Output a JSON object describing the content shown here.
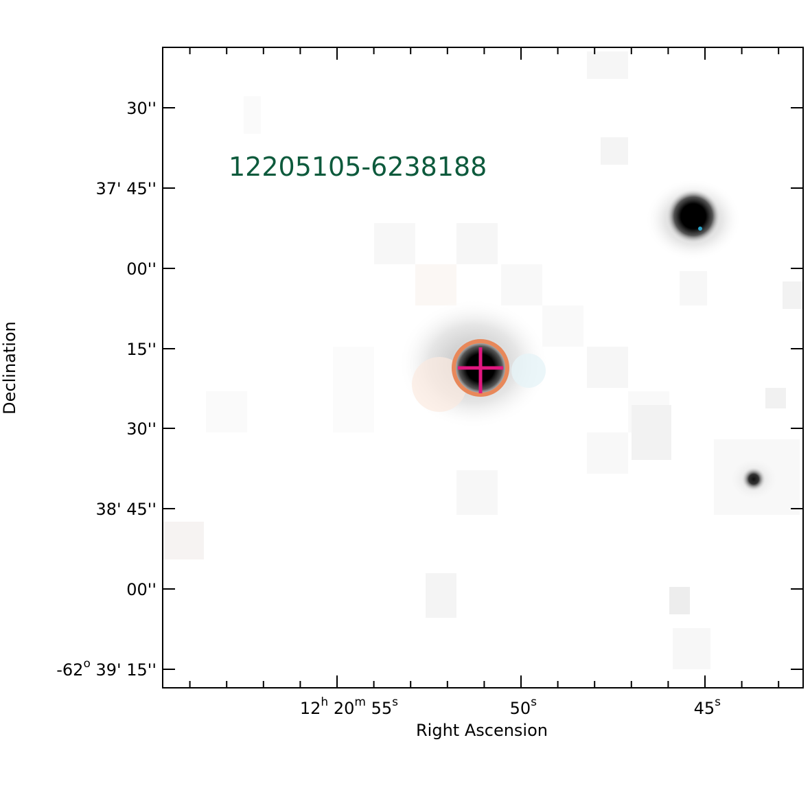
{
  "object_label": "12205105-6238188",
  "label_color": "#0d5a3c",
  "marker_ring_color": "#e8885a",
  "marker_cross_color": "#e0177f",
  "x_axis": {
    "title": "Right Ascension",
    "ticks": [
      {
        "h": "12",
        "h_unit": "h",
        "m": "20",
        "m_unit": "m",
        "s": "55",
        "s_unit": "s"
      },
      {
        "s": "50",
        "s_unit": "s"
      },
      {
        "s": "45",
        "s_unit": "s"
      }
    ]
  },
  "y_axis": {
    "title": "Declination",
    "ticks": [
      {
        "label": "30''"
      },
      {
        "label": "37' 45''"
      },
      {
        "label": "00''"
      },
      {
        "label": "15''"
      },
      {
        "label": "30''"
      },
      {
        "label": "38' 45''"
      },
      {
        "label": "00''"
      },
      {
        "deg": "-62",
        "deg_unit": "o",
        "rest": "39' 15''"
      }
    ]
  }
}
